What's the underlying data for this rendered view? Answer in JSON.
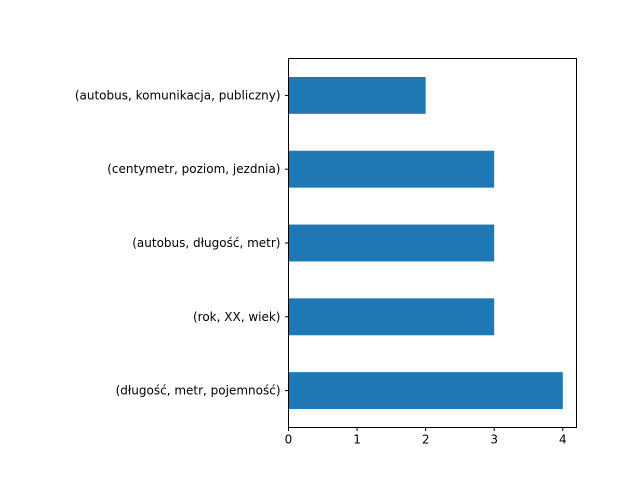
{
  "chart_data": {
    "type": "bar",
    "orientation": "horizontal",
    "categories": [
      "(autobus, komunikacja, publiczny)",
      "(centymetr, poziom, jezdnia)",
      "(autobus, długość, metr)",
      "(rok, XX, wiek)",
      "(długość, metr, pojemność)"
    ],
    "values": [
      2,
      3,
      3,
      3,
      4
    ],
    "xlim": [
      0,
      4.2
    ],
    "xticks": [
      "0",
      "1",
      "2",
      "3",
      "4"
    ],
    "title": "",
    "xlabel": "",
    "ylabel": "",
    "grid": false,
    "legend": "none",
    "bar_color": "#1f77b4"
  }
}
